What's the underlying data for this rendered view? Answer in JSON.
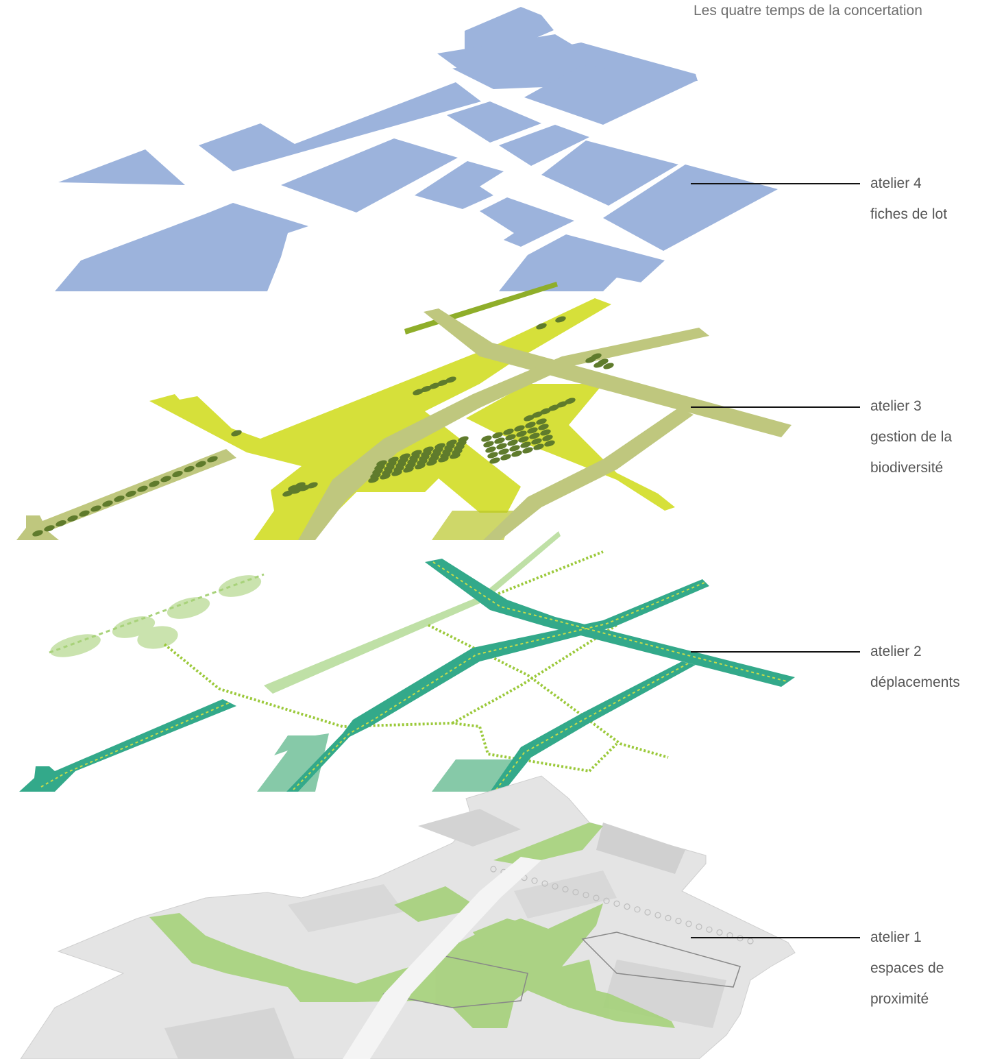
{
  "title": "Les quatre temps de la concertation",
  "colors": {
    "lots": "#9cb3dc",
    "yellow_green": "#d6e03a",
    "olive": "#bfc77e",
    "trees": "#5f7b2c",
    "teal": "#33a98a",
    "teal_light": "#86c9a8",
    "dots": "#9bc93a",
    "base_gray": "#dedede",
    "base_green": "#a5d17a"
  },
  "layers": [
    {
      "name": "atelier 4",
      "subtitle_lines": [
        "fiches de lot"
      ]
    },
    {
      "name": "atelier 3",
      "subtitle_lines": [
        "gestion de la",
        "biodiversité"
      ]
    },
    {
      "name": "atelier 2",
      "subtitle_lines": [
        "déplacements"
      ]
    },
    {
      "name": "atelier 1",
      "subtitle_lines": [
        "espaces de",
        "proximité"
      ]
    }
  ]
}
